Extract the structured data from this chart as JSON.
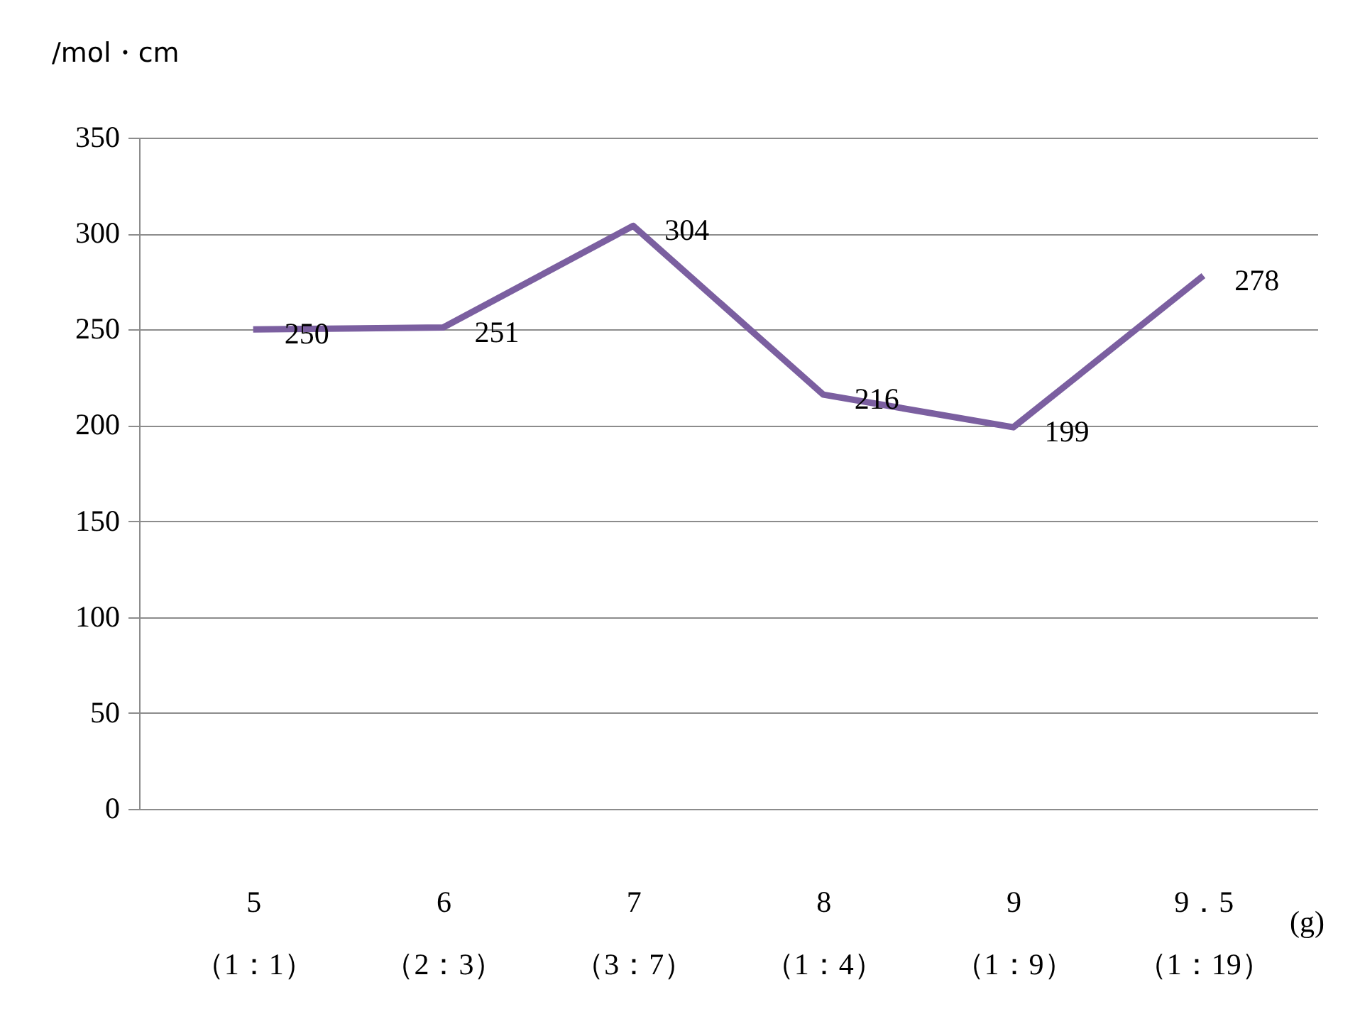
{
  "chart_data": {
    "type": "line",
    "ylabel": "/mol・cm",
    "xlabel": "(g)",
    "categories": [
      "5\n（1：1）",
      "6\n（2：3）",
      "7\n（3：7）",
      "8\n（1：4）",
      "9\n（1：9）",
      "9．5\n（1：19）"
    ],
    "series": [
      {
        "color": "#7b5fa0",
        "values": [
          250,
          251,
          304,
          216,
          199,
          278
        ]
      }
    ],
    "ylim": [
      0,
      350
    ],
    "yticks": [
      0,
      50,
      100,
      150,
      200,
      250,
      300,
      350
    ],
    "grid": "y",
    "data_labels": true,
    "marker": "none",
    "line_style": "solid"
  }
}
